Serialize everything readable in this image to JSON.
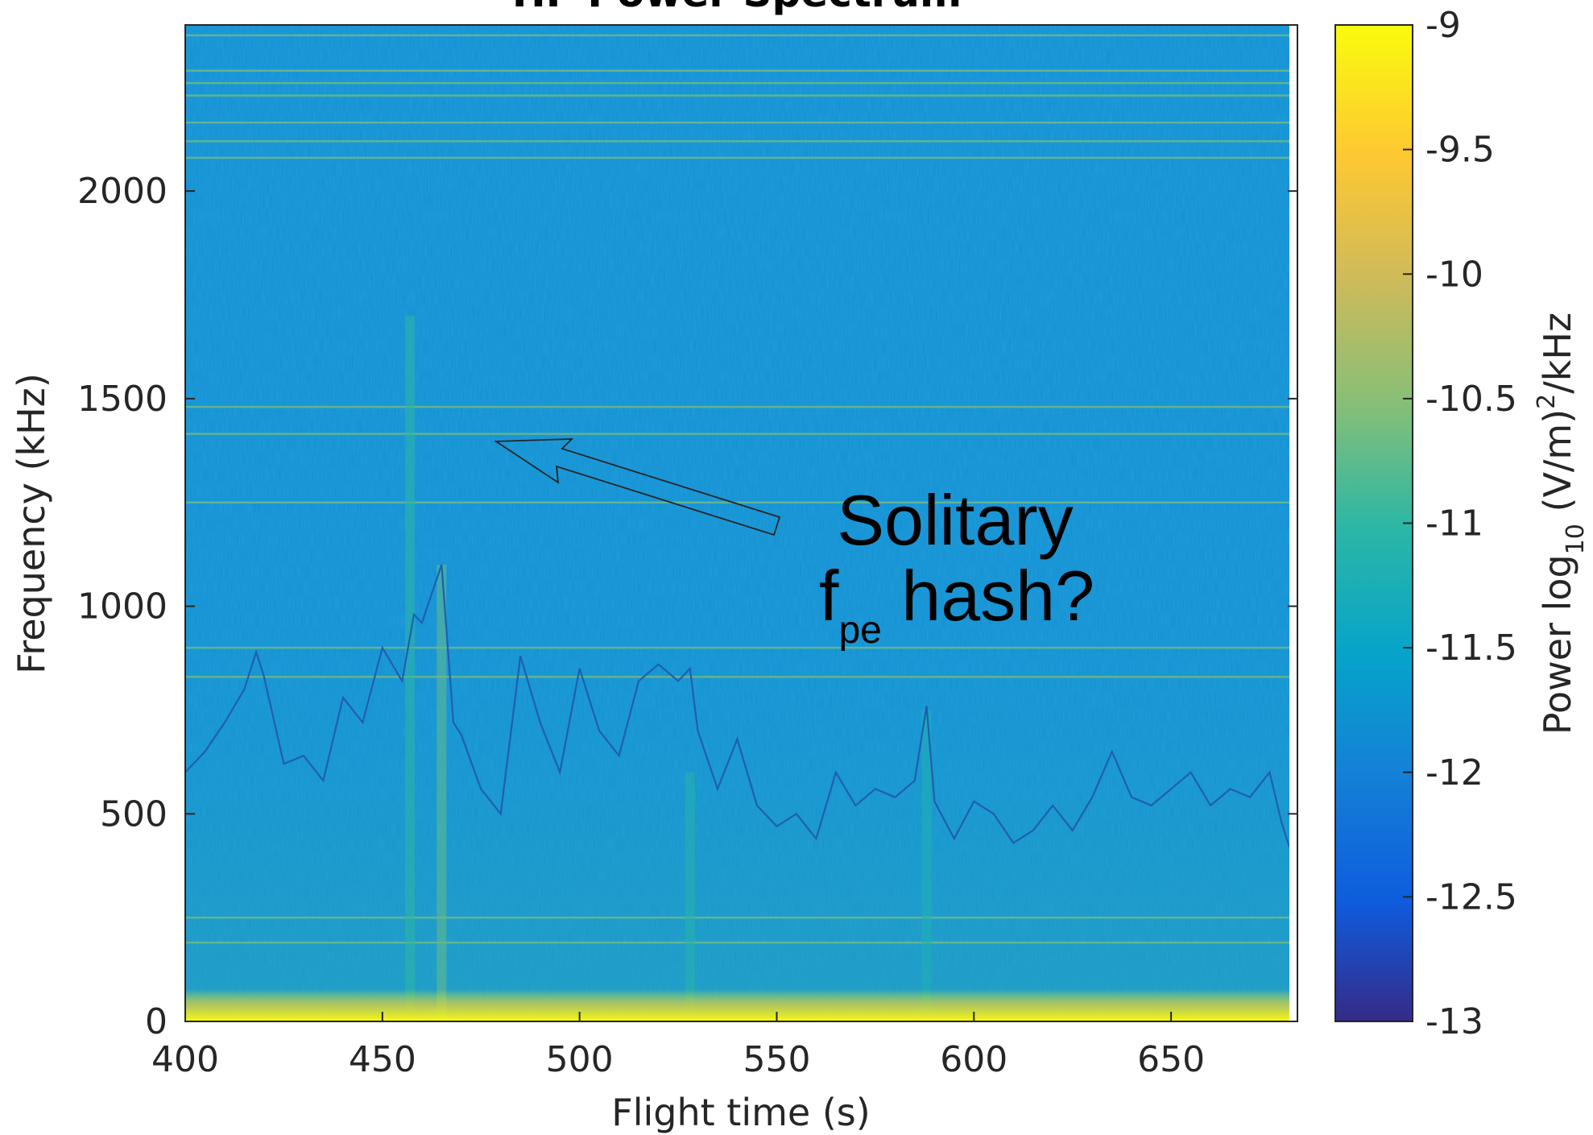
{
  "chart_data": {
    "type": "heatmap",
    "title": "HF Power Spectrum",
    "xlabel": "Flight time (s)",
    "ylabel": "Frequency (kHz)",
    "xlim": [
      400,
      680
    ],
    "ylim": [
      0,
      2400
    ],
    "x_ticks": [
      "400",
      "450",
      "500",
      "550",
      "600",
      "650"
    ],
    "y_ticks": [
      "0",
      "500",
      "1000",
      "1500",
      "2000"
    ],
    "colorbar": {
      "label_prefix": "Power log",
      "label_sub": "10",
      "label_mid": " (V/m)",
      "label_sup": "2",
      "label_suffix": "/kHz",
      "ticks": [
        "-9",
        "-9.5",
        "-10",
        "-10.5",
        "-11",
        "-11.5",
        "-12",
        "-12.5",
        "-13"
      ],
      "range": [
        -13,
        -9
      ],
      "colormap": "parula"
    },
    "background_level": -11.8,
    "low_frequency_band": {
      "max_freq_khz": 60,
      "level": -9.1
    },
    "horizontal_lines_khz": [
      2375,
      2290,
      2260,
      2230,
      2165,
      2120,
      2080,
      1415,
      1480,
      1250,
      900,
      830,
      250,
      190
    ],
    "vertical_features": [
      {
        "time": 457,
        "level": -11.0,
        "max_freq_khz": 1700
      },
      {
        "time": 465,
        "level": -10.7,
        "max_freq_khz": 1100
      },
      {
        "time": 528,
        "level": -11.1,
        "max_freq_khz": 600
      },
      {
        "time": 588,
        "level": -11.2,
        "max_freq_khz": 750
      }
    ],
    "fpe_trace": {
      "color": "#1f5fb0",
      "x": [
        400,
        405,
        410,
        415,
        418,
        420,
        425,
        430,
        435,
        440,
        445,
        450,
        455,
        458,
        460,
        465,
        468,
        470,
        475,
        480,
        485,
        490,
        495,
        500,
        505,
        510,
        515,
        520,
        525,
        528,
        530,
        535,
        540,
        545,
        550,
        555,
        560,
        565,
        570,
        575,
        580,
        585,
        588,
        590,
        595,
        600,
        605,
        610,
        615,
        620,
        625,
        630,
        635,
        640,
        645,
        650,
        655,
        660,
        665,
        670,
        675,
        678,
        680
      ],
      "y": [
        600,
        650,
        720,
        800,
        890,
        830,
        620,
        640,
        580,
        780,
        720,
        900,
        820,
        980,
        960,
        1100,
        720,
        690,
        560,
        500,
        880,
        720,
        600,
        850,
        700,
        640,
        820,
        860,
        820,
        850,
        700,
        560,
        680,
        520,
        470,
        500,
        440,
        600,
        520,
        560,
        540,
        580,
        760,
        530,
        440,
        530,
        500,
        430,
        460,
        520,
        460,
        540,
        650,
        540,
        520,
        560,
        600,
        520,
        560,
        540,
        600,
        480,
        420
      ]
    },
    "annotation": {
      "line1": "Solitary",
      "line2_main": "f",
      "line2_sub": "pe",
      "line2_rest": " hash?",
      "arrow_target": {
        "x": 475,
        "y": 1410
      }
    }
  }
}
